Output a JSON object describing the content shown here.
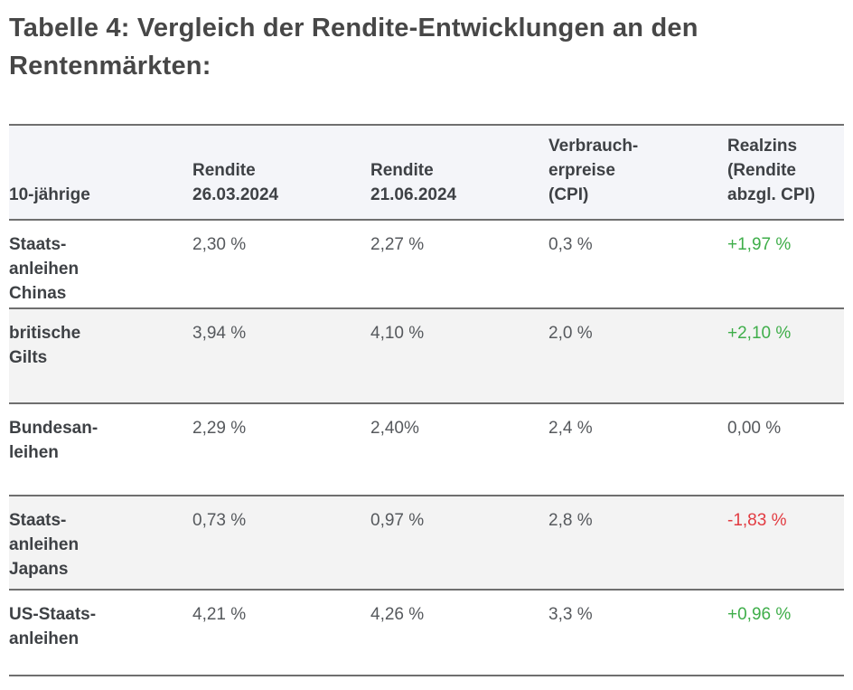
{
  "page": {
    "title": "Tabelle 4: Vergleich der Rendite-Entwicklungen an den\nRentenmärkten:"
  },
  "colors": {
    "positive": "#3fae4a",
    "negative": "#e23b41",
    "neutral": "#56595d",
    "header_bg": "#f4f5f9",
    "alt_row_bg": "#f3f3f3",
    "rule": "#6f6f6f",
    "title_text": "#474747",
    "label_text": "#3e4145",
    "value_text": "#56595d"
  },
  "table": {
    "columns": [
      "10-jährige",
      "Rendite\n26.03.2024",
      "Rendite\n21.06.2024",
      "Verbrauch-\nerpreise\n(CPI)",
      "Realzins\n(Rendite\nabzgl. CPI)"
    ],
    "rows": [
      {
        "name": "Staats-\nanleihen\nChinas",
        "rendite1": "2,30 %",
        "rendite2": "2,27 %",
        "cpi": "0,3 %",
        "realzins": "+1,97 %",
        "realzins_color": "#3fae4a"
      },
      {
        "name": "britische\nGilts",
        "rendite1": "3,94 %",
        "rendite2": "4,10 %",
        "cpi": "2,0 %",
        "realzins": "+2,10 %",
        "realzins_color": "#3fae4a"
      },
      {
        "name": "Bundesan-\nleihen",
        "rendite1": "2,29 %",
        "rendite2": "2,40%",
        "cpi": "2,4 %",
        "realzins": "0,00 %",
        "realzins_color": "#56595d"
      },
      {
        "name": "Staats-\nanleihen\nJapans",
        "rendite1": "0,73 %",
        "rendite2": "0,97 %",
        "cpi": "2,8 %",
        "realzins": "-1,83 %",
        "realzins_color": "#e23b41"
      },
      {
        "name": "US-Staats-\nanleihen",
        "rendite1": "4,21 %",
        "rendite2": "4,26 %",
        "cpi": "3,3 %",
        "realzins": "+0,96 %",
        "realzins_color": "#3fae4a"
      }
    ]
  },
  "chart_data": {
    "type": "table",
    "title": "Tabelle 4: Vergleich der Rendite-Entwicklungen an den Rentenmärkten:",
    "columns": [
      "10-jährige",
      "Rendite 26.03.2024",
      "Rendite 21.06.2024",
      "Verbraucherpreise (CPI)",
      "Realzins (Rendite abzgl. CPI)"
    ],
    "rows": [
      [
        "Staatsanleihen Chinas",
        "2,30 %",
        "2,27 %",
        "0,3 %",
        "+1,97 %"
      ],
      [
        "britische Gilts",
        "3,94 %",
        "4,10 %",
        "2,0 %",
        "+2,10 %"
      ],
      [
        "Bundesanleihen",
        "2,29 %",
        "2,40%",
        "2,4 %",
        "0,00 %"
      ],
      [
        "Staatsanleihen Japans",
        "0,73 %",
        "0,97 %",
        "2,8 %",
        "-1,83 %"
      ],
      [
        "US-Staatsanleihen",
        "4,21 %",
        "4,26 %",
        "3,3 %",
        "+0,96 %"
      ]
    ],
    "realzins_trend": [
      "positive",
      "positive",
      "neutral",
      "negative",
      "positive"
    ]
  }
}
